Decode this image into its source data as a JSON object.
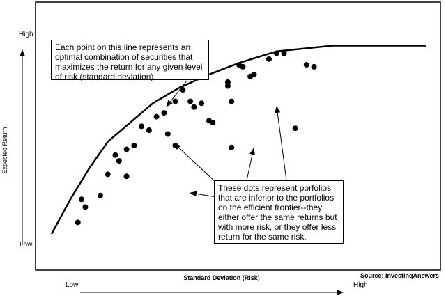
{
  "chart_data": {
    "type": "scatter",
    "xlabel": "Standard Deviation (Risk)",
    "ylabel": "Expected Return",
    "x_low_label": "Low",
    "x_high_label": "High",
    "y_low_label": "Low",
    "y_high_label": "High",
    "source": "Source: InvestingAnswers",
    "xlim": [
      0,
      100
    ],
    "ylim": [
      0,
      100
    ],
    "grid": false,
    "frontier": {
      "x": [
        0,
        5,
        10,
        15,
        21,
        27,
        34,
        42,
        50,
        60,
        75,
        100
      ],
      "y": [
        0,
        18,
        34,
        48,
        58,
        68,
        76,
        83,
        89,
        95,
        98,
        98
      ]
    },
    "portfolios": {
      "x": [
        7,
        8,
        9,
        13,
        15,
        17,
        18,
        20,
        20,
        22,
        24,
        26,
        28,
        30,
        31,
        33,
        33,
        35,
        37,
        38,
        40,
        42,
        43,
        47,
        47,
        48,
        48,
        50,
        51,
        53,
        54,
        58,
        60,
        62,
        65,
        68,
        70
      ],
      "y": [
        6,
        18,
        14,
        20,
        31,
        41,
        38,
        44,
        30,
        46,
        56,
        54,
        61,
        63,
        52,
        69,
        46,
        75,
        69,
        66,
        68,
        59,
        58,
        79,
        77,
        69,
        45,
        88,
        87,
        82,
        83,
        91,
        94,
        94,
        55,
        88,
        87
      ]
    },
    "annotations": [
      {
        "text": "Each point on this line represents an optimal combination of securities that maximizes the return for any given level of risk (standard deviation)."
      },
      {
        "text": "These dots represent porfolios that are inferior to the portfolios on the efficient frontier--they either offer the same returns but with more risk, or they offer less return for the same risk."
      }
    ]
  }
}
